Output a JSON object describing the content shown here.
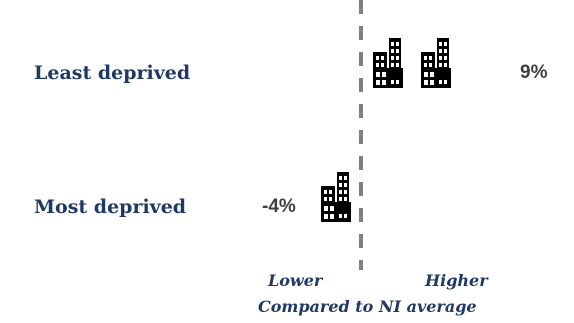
{
  "chart_data": {
    "type": "bar",
    "categories": [
      "Least deprived",
      "Most deprived"
    ],
    "values": [
      9,
      -4
    ],
    "value_labels": [
      "9%",
      "-4%"
    ],
    "unit": "%",
    "x_left_label": "Lower",
    "x_right_label": "Higher",
    "xlabel": "Compared to NI average",
    "baseline_value": 0,
    "icon_name": "building-icon",
    "colors": {
      "icon": "#000000",
      "axis_line": "#808080",
      "category_text": "#1f3864",
      "value_text": "#404040"
    }
  }
}
